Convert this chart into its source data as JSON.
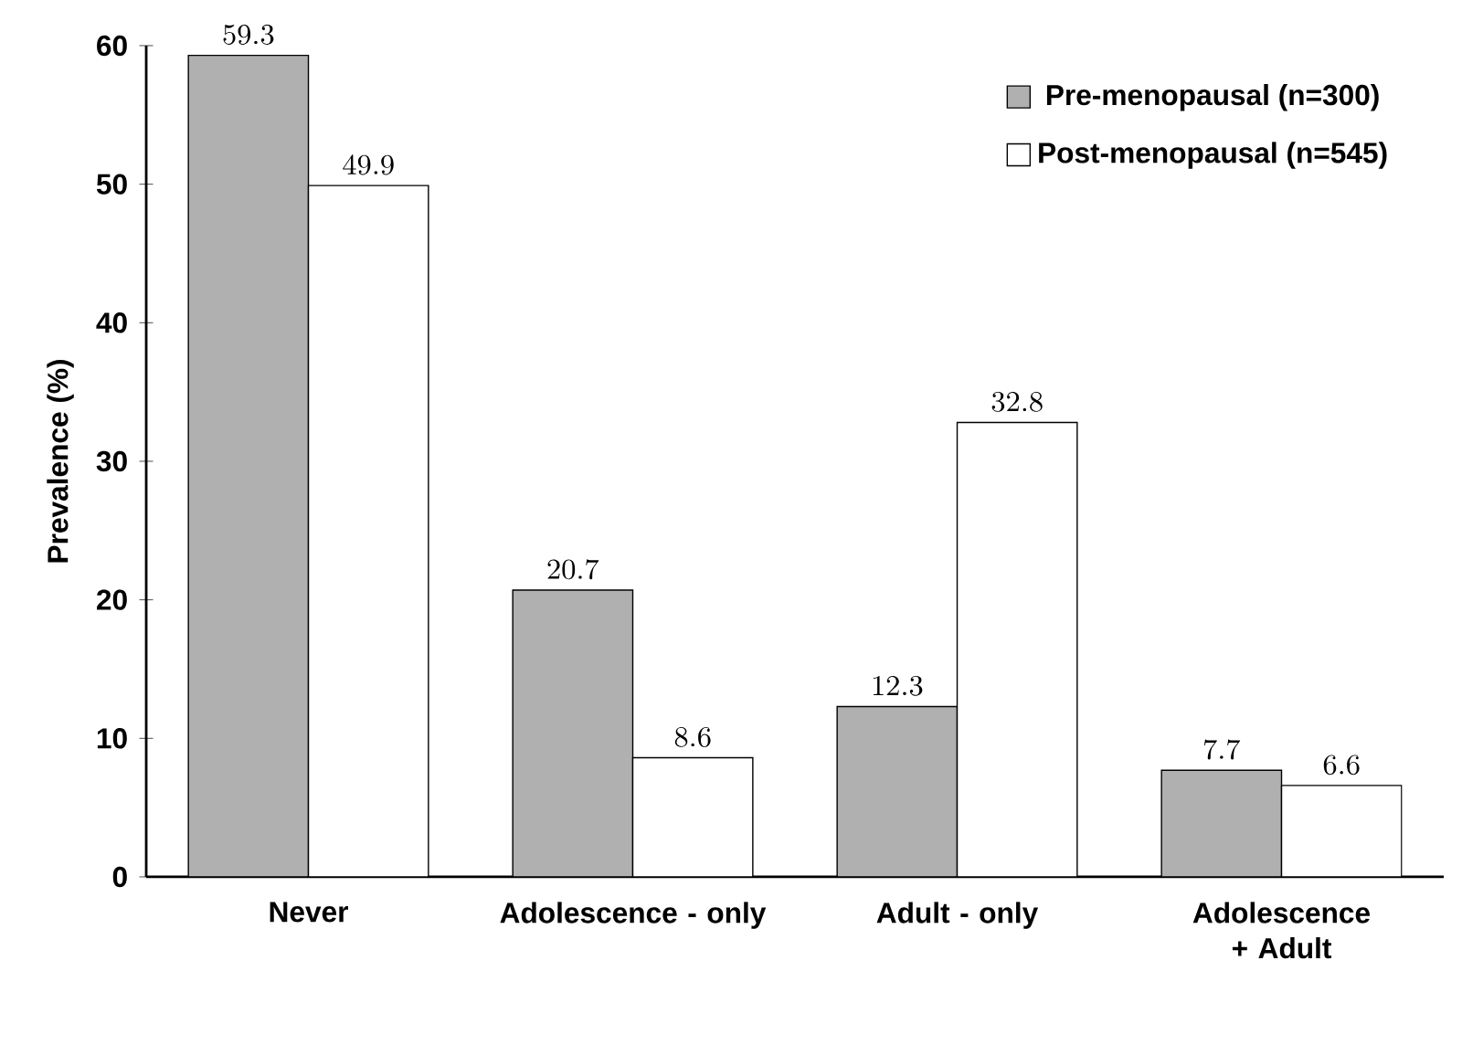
{
  "chart_data": {
    "type": "bar",
    "ylabel": "Prevalence (%)",
    "categories": [
      "Never",
      "Adolescence - only",
      "Adult - only",
      "Adolescence + Adult"
    ],
    "series": [
      {
        "name": "Pre-menopausal (n=300)",
        "color": "#b0b0b0",
        "values": [
          59.3,
          20.7,
          12.3,
          7.7
        ]
      },
      {
        "name": "Post-menopausal (n=545)",
        "color": "#ffffff",
        "values": [
          49.9,
          8.6,
          32.8,
          6.6
        ]
      }
    ],
    "ylim": [
      0,
      60
    ],
    "yticks": [
      0,
      10,
      20,
      30,
      40,
      50,
      60
    ],
    "legend": "top right",
    "data_labels": true,
    "grid": false
  }
}
